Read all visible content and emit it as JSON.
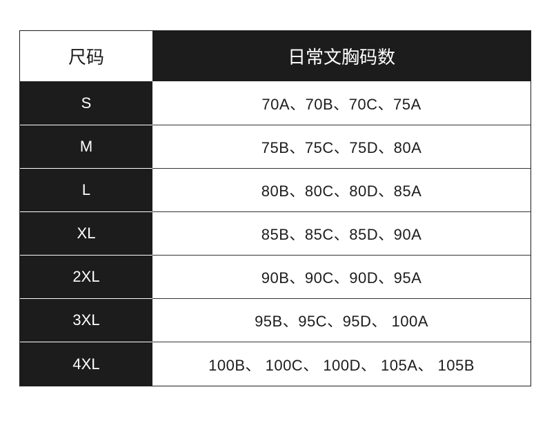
{
  "header": {
    "size": "尺码",
    "bra_sizes": "日常文胸码数"
  },
  "rows": [
    {
      "size": "S",
      "bra_sizes": "70A、70B、70C、75A"
    },
    {
      "size": "M",
      "bra_sizes": "75B、75C、75D、80A"
    },
    {
      "size": "L",
      "bra_sizes": "80B、80C、80D、85A"
    },
    {
      "size": "XL",
      "bra_sizes": "85B、85C、85D、90A"
    },
    {
      "size": "2XL",
      "bra_sizes": "90B、90C、90D、95A"
    },
    {
      "size": "3XL",
      "bra_sizes": "95B、95C、95D、 100A"
    },
    {
      "size": "4XL",
      "bra_sizes": "100B、 100C、 100D、 105A、 105B"
    }
  ],
  "colors": {
    "dark": "#1c1c1c",
    "light": "#ffffff"
  }
}
